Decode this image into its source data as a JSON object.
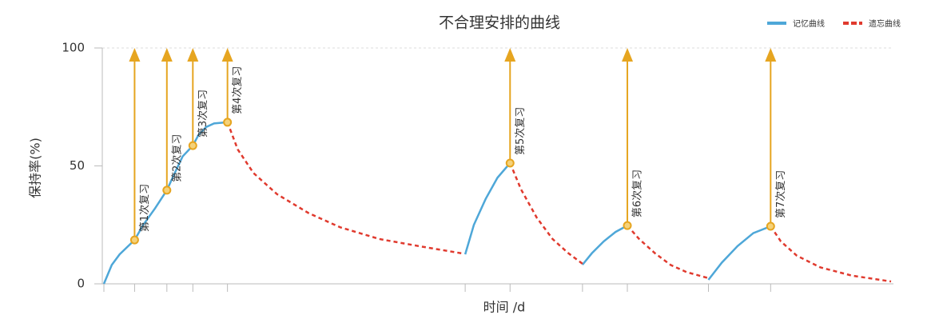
{
  "chart_data": {
    "type": "line",
    "title": "不合理安排的曲线",
    "y_label": "保持率(%)",
    "x_label": "时间 /d",
    "xlim": [
      0,
      100
    ],
    "ylim": [
      0,
      100
    ],
    "yticks": [
      0,
      50,
      100
    ],
    "series": [
      {
        "name": "记忆曲线",
        "color": "#4ea7d8",
        "dashed": false,
        "x": [
          0,
          1,
          2,
          3.9,
          5,
          6.5,
          8,
          9,
          10,
          11.3,
          12,
          13,
          14,
          15.7,
          null,
          45.9,
          47,
          48.5,
          50,
          51.6,
          null,
          60.8,
          62,
          63.5,
          65,
          66.5,
          null,
          76.8,
          78.5,
          80.5,
          82.5,
          84.7
        ],
        "values": [
          0,
          8,
          12.5,
          18.6,
          25,
          32,
          39.7,
          47,
          54,
          58.6,
          63,
          66.5,
          68,
          68.5,
          null,
          12.5,
          25,
          36,
          45,
          51.2,
          null,
          8.1,
          13,
          18,
          22,
          24.7,
          null,
          1.7,
          9,
          16,
          21.5,
          24.4
        ]
      },
      {
        "name": "遗忘曲线",
        "color": "#e03a2e",
        "dashed": true,
        "x": [
          15.7,
          17,
          19,
          22,
          26,
          30,
          35,
          40,
          45.5,
          null,
          51.6,
          53,
          55,
          57,
          59,
          60.8,
          null,
          66.5,
          68,
          70,
          72,
          74,
          76.8,
          null,
          84.7,
          86,
          88,
          91,
          95,
          100
        ],
        "values": [
          68.5,
          57,
          47,
          38,
          30,
          24,
          19,
          16,
          12.9,
          null,
          51.2,
          40,
          28,
          19,
          13,
          8.5,
          null,
          24.7,
          19,
          13,
          8,
          5,
          2.4,
          null,
          24.4,
          18,
          12,
          7,
          3.5,
          1
        ]
      }
    ],
    "reviews": [
      {
        "label": "第1次复习",
        "x": 3.9,
        "value": 18.6
      },
      {
        "label": "第2次复习",
        "x": 8,
        "value": 39.7
      },
      {
        "label": "第3次复习",
        "x": 11.3,
        "value": 58.6
      },
      {
        "label": "第4次复习",
        "x": 15.7,
        "value": 68.5
      },
      {
        "label": "第5次复习",
        "x": 51.6,
        "value": 51.2
      },
      {
        "label": "第6次复习",
        "x": 66.5,
        "value": 24.7
      },
      {
        "label": "第7次复习",
        "x": 84.7,
        "value": 24.4
      }
    ],
    "review_color": "#e6a520"
  }
}
